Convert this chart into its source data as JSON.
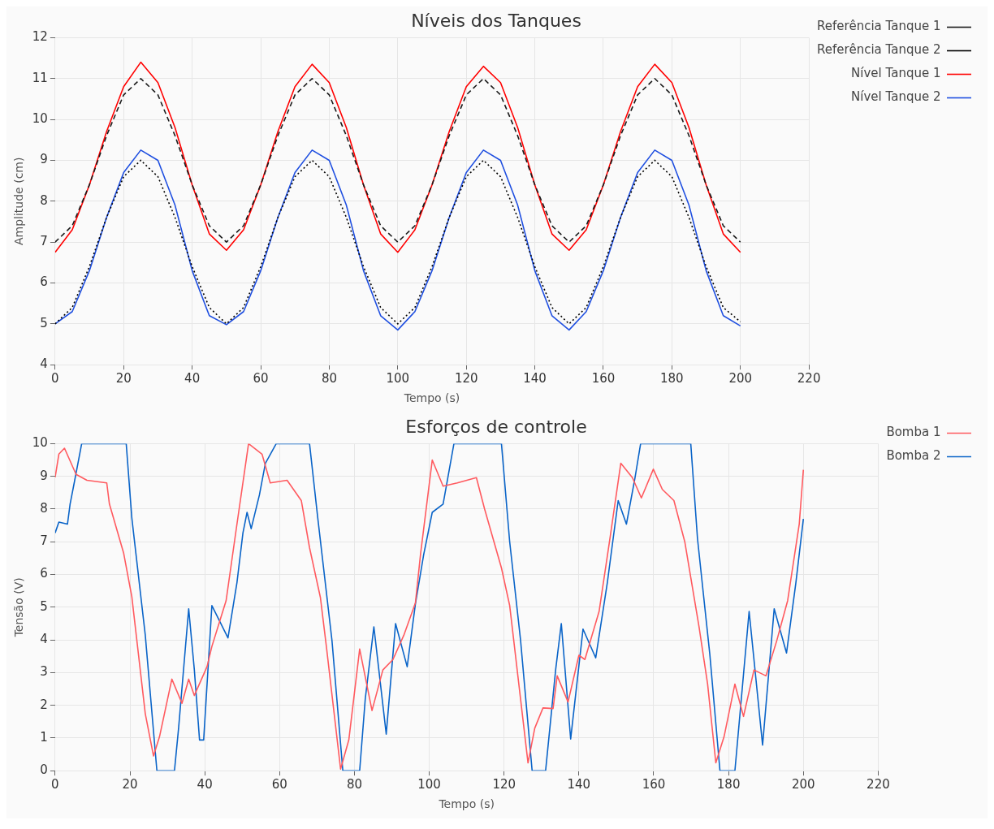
{
  "chart_data": [
    {
      "type": "line",
      "title": "Níveis dos Tanques",
      "xlabel": "Tempo (s)",
      "ylabel": "Amplitude (cm)",
      "xlim": [
        0,
        220
      ],
      "xticks": [
        0,
        20,
        40,
        60,
        80,
        100,
        120,
        140,
        160,
        180,
        200,
        220
      ],
      "ylim": [
        4,
        12
      ],
      "yticks": [
        4,
        5,
        6,
        7,
        8,
        9,
        10,
        11,
        12
      ],
      "grid": true,
      "legend": "right",
      "series": [
        {
          "name": "Referência Tanque 1",
          "color": "#1a1a1a",
          "line_style": "dashed",
          "x": [
            0,
            5,
            10,
            15,
            20,
            25,
            30,
            35,
            40,
            45,
            50,
            55,
            60,
            65,
            70,
            75,
            80,
            85,
            90,
            95,
            100,
            105,
            110,
            115,
            120,
            125,
            130,
            135,
            140,
            145,
            150,
            155,
            160,
            165,
            170,
            175,
            180,
            185,
            190,
            195,
            200
          ],
          "values": [
            7.0,
            7.4,
            8.4,
            9.6,
            10.6,
            11.0,
            10.6,
            9.6,
            8.4,
            7.4,
            7.0,
            7.4,
            8.4,
            9.6,
            10.6,
            11.0,
            10.6,
            9.6,
            8.4,
            7.4,
            7.0,
            7.4,
            8.4,
            9.6,
            10.6,
            11.0,
            10.6,
            9.6,
            8.4,
            7.4,
            7.0,
            7.4,
            8.4,
            9.6,
            10.6,
            11.0,
            10.6,
            9.6,
            8.4,
            7.4,
            7.0
          ]
        },
        {
          "name": "Referência Tanque 2",
          "color": "#000000",
          "line_style": "dotted",
          "x": [
            0,
            5,
            10,
            15,
            20,
            25,
            30,
            35,
            40,
            45,
            50,
            55,
            60,
            65,
            70,
            75,
            80,
            85,
            90,
            95,
            100,
            105,
            110,
            115,
            120,
            125,
            130,
            135,
            140,
            145,
            150,
            155,
            160,
            165,
            170,
            175,
            180,
            185,
            190,
            195,
            200
          ],
          "values": [
            5.0,
            5.4,
            6.4,
            7.6,
            8.6,
            9.0,
            8.6,
            7.6,
            6.4,
            5.4,
            5.0,
            5.4,
            6.4,
            7.6,
            8.6,
            9.0,
            8.6,
            7.6,
            6.4,
            5.4,
            5.0,
            5.4,
            6.4,
            7.6,
            8.6,
            9.0,
            8.6,
            7.6,
            6.4,
            5.4,
            5.0,
            5.4,
            6.4,
            7.6,
            8.6,
            9.0,
            8.6,
            7.6,
            6.4,
            5.4,
            5.05
          ]
        },
        {
          "name": "Nível Tanque 1",
          "color": "#ff0000",
          "line_style": "solid",
          "x": [
            0,
            5,
            10,
            15,
            20,
            25,
            30,
            35,
            40,
            45,
            50,
            55,
            60,
            65,
            70,
            75,
            80,
            85,
            90,
            95,
            100,
            105,
            110,
            115,
            120,
            125,
            130,
            135,
            140,
            145,
            150,
            155,
            160,
            165,
            170,
            175,
            180,
            185,
            190,
            195,
            200
          ],
          "values": [
            6.75,
            7.3,
            8.4,
            9.7,
            10.8,
            11.4,
            10.9,
            9.8,
            8.4,
            7.2,
            6.8,
            7.3,
            8.4,
            9.7,
            10.8,
            11.35,
            10.9,
            9.8,
            8.4,
            7.2,
            6.75,
            7.3,
            8.4,
            9.7,
            10.8,
            11.3,
            10.9,
            9.8,
            8.4,
            7.2,
            6.8,
            7.3,
            8.4,
            9.7,
            10.8,
            11.35,
            10.9,
            9.8,
            8.4,
            7.2,
            6.75
          ]
        },
        {
          "name": "Nível Tanque 2",
          "color": "#1f4fe0",
          "line_style": "solid",
          "x": [
            0,
            5,
            10,
            15,
            20,
            25,
            30,
            35,
            40,
            45,
            50,
            55,
            60,
            65,
            70,
            75,
            80,
            85,
            90,
            95,
            100,
            105,
            110,
            115,
            120,
            125,
            130,
            135,
            140,
            145,
            150,
            155,
            160,
            165,
            170,
            175,
            180,
            185,
            190,
            195,
            200
          ],
          "values": [
            5.0,
            5.3,
            6.3,
            7.6,
            8.7,
            9.25,
            9.0,
            7.9,
            6.3,
            5.2,
            4.98,
            5.3,
            6.3,
            7.6,
            8.7,
            9.25,
            9.0,
            7.9,
            6.3,
            5.2,
            4.85,
            5.3,
            6.3,
            7.6,
            8.7,
            9.25,
            9.0,
            7.9,
            6.3,
            5.2,
            4.85,
            5.3,
            6.3,
            7.6,
            8.7,
            9.25,
            9.0,
            7.9,
            6.3,
            5.2,
            4.95
          ]
        }
      ]
    },
    {
      "type": "line",
      "title": "Esforços de controle",
      "xlabel": "Tempo (s)",
      "ylabel": "Tensão (V)",
      "xlim": [
        0,
        220
      ],
      "xticks": [
        0,
        20,
        40,
        60,
        80,
        100,
        120,
        140,
        160,
        180,
        200,
        220
      ],
      "ylim": [
        0,
        10
      ],
      "yticks": [
        0,
        1,
        2,
        3,
        4,
        5,
        6,
        7,
        8,
        9,
        10
      ],
      "grid": true,
      "legend": "right",
      "series": [
        {
          "name": "Bomba 1",
          "color": "#ff5a5f",
          "line_style": "solid",
          "x": [
            0,
            1,
            2.5,
            5.6,
            8.5,
            13.8,
            14.5,
            18.3,
            20.5,
            24.1,
            26.3,
            27.9,
            31.2,
            33.9,
            35.7,
            37.2,
            40.6,
            41.9,
            45.7,
            48.6,
            51.7,
            55.3,
            57.5,
            62,
            65.8,
            68,
            70.9,
            72.5,
            76.3,
            78.5,
            81.4,
            84.7,
            87.6,
            90.3,
            93.2,
            96.3,
            97.7,
            100.8,
            103.7,
            107.5,
            112.6,
            114.8,
            119.3,
            121.5,
            124.4,
            126.4,
            128.2,
            130.4,
            133.1,
            134.2,
            137.1,
            140,
            141.6,
            145.4,
            148.3,
            151.2,
            154.3,
            156.7,
            159.9,
            162.3,
            165.4,
            168.3,
            172.1,
            174.4,
            176.6,
            178.8,
            181.7,
            184,
            186.8,
            190,
            192.9,
            195.8,
            198.9,
            200
          ],
          "values": [
            8.97,
            9.68,
            9.86,
            9.06,
            8.88,
            8.8,
            8.16,
            6.66,
            5.32,
            1.74,
            0.45,
            1.04,
            2.8,
            2.06,
            2.8,
            2.3,
            3.18,
            3.8,
            5.2,
            7.54,
            10,
            9.68,
            8.8,
            8.88,
            8.26,
            6.82,
            5.3,
            3.8,
            0.05,
            0.94,
            3.72,
            1.84,
            3.08,
            3.4,
            4.14,
            5.13,
            6.65,
            9.5,
            8.7,
            8.8,
            8.96,
            8.0,
            6.2,
            5.05,
            2.2,
            0.24,
            1.3,
            1.92,
            1.9,
            2.9,
            2.1,
            3.53,
            3.4,
            4.87,
            7.1,
            9.4,
            8.96,
            8.34,
            9.22,
            8.6,
            8.26,
            7.0,
            4.41,
            2.65,
            0.24,
            1.04,
            2.65,
            1.66,
            3.08,
            2.9,
            3.98,
            5.2,
            7.54,
            9.2
          ]
        },
        {
          "name": "Bomba 2",
          "color": "#0a64c8",
          "line_style": "solid",
          "x": [
            0,
            1,
            3.3,
            4,
            5.1,
            7.1,
            19,
            20.5,
            24.1,
            27.2,
            31.9,
            33,
            35.7,
            37.2,
            38.6,
            39.7,
            41.9,
            46.2,
            48.6,
            50.2,
            51.3,
            52.4,
            54.6,
            56.2,
            59.1,
            68,
            70.2,
            74,
            76.9,
            81.4,
            82.9,
            85.2,
            88.5,
            91,
            94.1,
            96.3,
            98.5,
            100.8,
            103.7,
            106.6,
            119.3,
            121.5,
            124.4,
            127.5,
            131.1,
            133.8,
            135.3,
            137.8,
            141.1,
            144.5,
            147.6,
            150.5,
            152.7,
            155,
            156.5,
            169.9,
            171.7,
            175,
            177.7,
            181.7,
            185.5,
            189.1,
            192.2,
            195.5,
            198,
            200
          ],
          "values": [
            7.27,
            7.6,
            7.54,
            8.15,
            8.8,
            10,
            10,
            7.73,
            4.14,
            0,
            0,
            1.3,
            4.95,
            3.1,
            0.94,
            0.94,
            5.05,
            4.06,
            5.75,
            7.27,
            7.9,
            7.4,
            8.43,
            9.4,
            10,
            10,
            7.73,
            3.98,
            0,
            0,
            2.2,
            4.4,
            1.12,
            4.5,
            3.18,
            5.1,
            6.6,
            7.9,
            8.15,
            10,
            10,
            7.0,
            4.0,
            0,
            0,
            3.1,
            4.5,
            0.97,
            4.33,
            3.45,
            5.75,
            8.26,
            7.54,
            8.96,
            10,
            10,
            7.1,
            3.55,
            0,
            0,
            4.87,
            0.78,
            4.95,
            3.6,
            5.75,
            7.7
          ]
        }
      ]
    }
  ]
}
